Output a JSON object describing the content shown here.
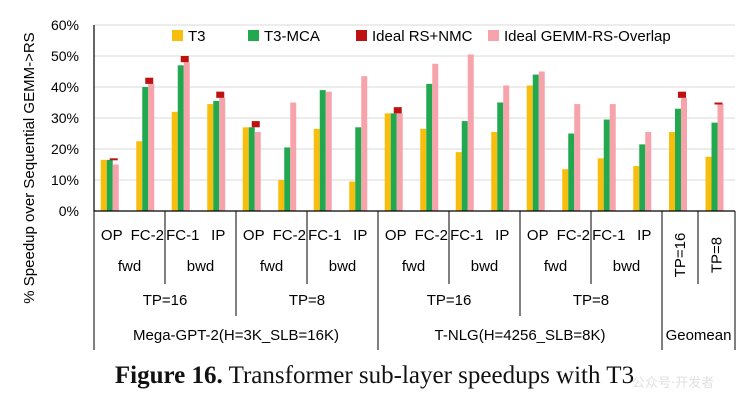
{
  "caption": {
    "label": "Figure 16.",
    "text": " Transformer sub-layer speedups with T3"
  },
  "watermark": "公众号·开发者",
  "colors": {
    "T3": "#F8BE0E",
    "T3-MCA": "#22A950",
    "Ideal RS+NMC": "#BE1212",
    "Ideal GEMM-RS-Overlap": "#F7A3AC"
  },
  "chart_data": {
    "type": "bar",
    "ylabel": "% Speedup over Sequential GEMM->RS",
    "ylim": [
      0,
      60
    ],
    "yticks": [
      "0%",
      "10%",
      "20%",
      "30%",
      "40%",
      "50%",
      "60%"
    ],
    "legend": {
      "placement": "top",
      "entries": [
        "T3",
        "T3-MCA",
        "Ideal RS+NMC",
        "Ideal GEMM-RS-Overlap"
      ]
    },
    "categories": [
      "OP",
      "FC-2",
      "FC-1",
      "IP",
      "OP",
      "FC-2",
      "FC-1",
      "IP",
      "OP",
      "FC-2",
      "FC-1",
      "IP",
      "OP",
      "FC-2",
      "FC-1",
      "IP",
      "TP=16",
      "TP=8"
    ],
    "series": [
      {
        "name": "T3",
        "values": [
          16.5,
          22.5,
          32,
          34.5,
          27,
          10,
          26.5,
          9.5,
          31.5,
          26.5,
          19,
          25.5,
          40.5,
          13.5,
          17,
          14.5,
          25.5,
          17.5
        ]
      },
      {
        "name": "T3-MCA",
        "values": [
          16.5,
          40,
          47,
          35.5,
          27,
          20.5,
          39,
          27,
          31.5,
          41,
          29,
          35,
          44,
          25,
          29.5,
          21.5,
          33,
          28.5
        ]
      },
      {
        "name": "Ideal RS+NMC",
        "values": [
          17,
          43,
          50,
          38.5,
          29,
          0,
          0,
          0,
          33.5,
          0,
          0,
          0,
          0,
          0,
          0,
          0,
          38.5,
          35
        ]
      },
      {
        "name": "Ideal GEMM-RS-Overlap",
        "values": [
          15,
          41,
          48,
          36.5,
          25.5,
          35,
          38.5,
          43.5,
          31.5,
          47.5,
          50.5,
          40.5,
          45,
          34.5,
          34.5,
          25.5,
          36.5,
          34.5
        ]
      }
    ],
    "groups": {
      "direction": [
        {
          "label": "fwd",
          "span": [
            0,
            1
          ]
        },
        {
          "label": "bwd",
          "span": [
            2,
            3
          ]
        },
        {
          "label": "fwd",
          "span": [
            4,
            5
          ]
        },
        {
          "label": "bwd",
          "span": [
            6,
            7
          ]
        },
        {
          "label": "fwd",
          "span": [
            8,
            9
          ]
        },
        {
          "label": "bwd",
          "span": [
            10,
            11
          ]
        },
        {
          "label": "fwd",
          "span": [
            12,
            13
          ]
        },
        {
          "label": "bwd",
          "span": [
            14,
            15
          ]
        }
      ],
      "tp": [
        {
          "label": "TP=16",
          "span": [
            0,
            3
          ]
        },
        {
          "label": "TP=8",
          "span": [
            4,
            7
          ]
        },
        {
          "label": "TP=16",
          "span": [
            8,
            11
          ]
        },
        {
          "label": "TP=8",
          "span": [
            12,
            15
          ]
        }
      ],
      "model": [
        {
          "label": "Mega-GPT-2(H=3K_SLB=16K)",
          "span": [
            0,
            7
          ]
        },
        {
          "label": "T-NLG(H=4256_SLB=8K)",
          "span": [
            8,
            15
          ]
        },
        {
          "label": "Geomean",
          "span": [
            16,
            17
          ]
        }
      ]
    }
  }
}
